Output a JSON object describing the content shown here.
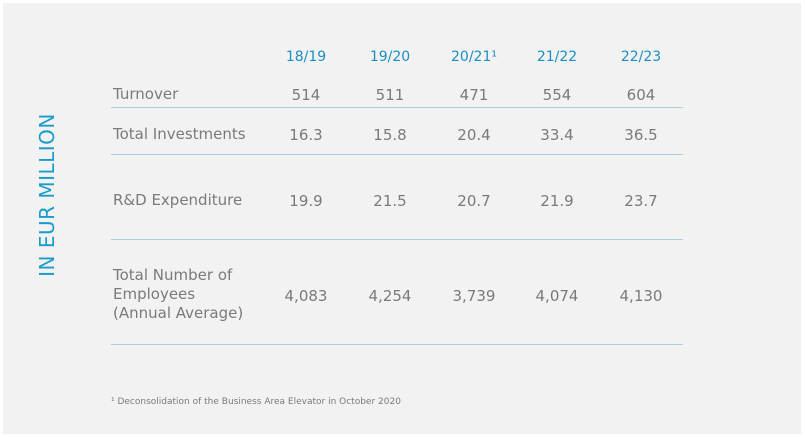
{
  "side_label": "IN EUR MILLION",
  "columns": [
    "18/19",
    "19/20",
    "20/21¹",
    "21/22",
    "22/23"
  ],
  "rows": [
    {
      "label": "Turnover",
      "values": [
        "514",
        "511",
        "471",
        "554",
        "604"
      ]
    },
    {
      "label": "Total Investments",
      "values": [
        "16.3",
        "15.8",
        "20.4",
        "33.4",
        "36.5"
      ]
    },
    {
      "label": "R&D Expenditure",
      "values": [
        "19.9",
        "21.5",
        "20.7",
        "21.9",
        "23.7"
      ]
    },
    {
      "label": "Total Number of\nEmployees\n(Annual Average)",
      "values": [
        "4,083",
        "4,254",
        "3,739",
        "4,074",
        "4,130"
      ]
    }
  ],
  "footnote": "¹ Deconsolidation of the Business Area Elevator in October 2020"
}
